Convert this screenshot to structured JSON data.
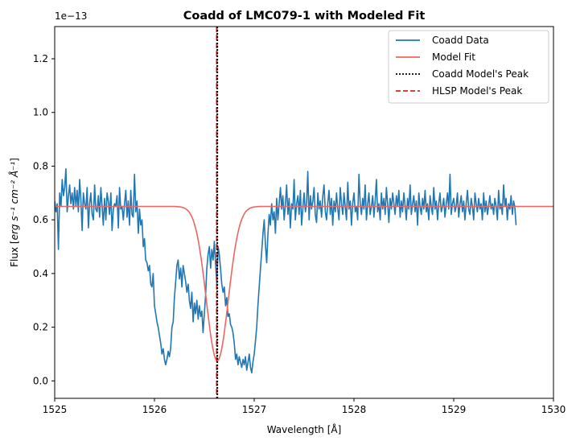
{
  "chart_data": {
    "type": "line",
    "title": "Coadd of LMC079-1 with Modeled Fit",
    "xlabel": "Wavelength [Å]",
    "ylabel_prefix": "Flux [",
    "ylabel_units": "erg s⁻¹ cm⁻² Å⁻¹",
    "ylabel_suffix": "]",
    "y_offset_text": "1e−13",
    "xlim": [
      1525,
      1530
    ],
    "ylim": [
      -0.065,
      1.32
    ],
    "x_ticks": [
      1525,
      1526,
      1527,
      1528,
      1529,
      1530
    ],
    "x_tick_labels": [
      "1525",
      "1526",
      "1527",
      "1528",
      "1529",
      "1530"
    ],
    "y_ticks": [
      0.0,
      0.2,
      0.4,
      0.6,
      0.8,
      1.0,
      1.2
    ],
    "y_tick_labels": [
      "0.0",
      "0.2",
      "0.4",
      "0.6",
      "0.8",
      "1.0",
      "1.2"
    ],
    "series": [
      {
        "name": "Coadd Data",
        "color": "#1f77b4",
        "style": "solid",
        "x_start": 1525.0,
        "x_step": 0.0125,
        "values": [
          0.67,
          0.63,
          0.66,
          0.49,
          0.7,
          0.65,
          0.75,
          0.69,
          0.72,
          0.79,
          0.63,
          0.69,
          0.73,
          0.66,
          0.7,
          0.64,
          0.72,
          0.65,
          0.71,
          0.63,
          0.75,
          0.67,
          0.56,
          0.7,
          0.66,
          0.64,
          0.72,
          0.57,
          0.66,
          0.7,
          0.62,
          0.6,
          0.73,
          0.64,
          0.63,
          0.69,
          0.61,
          0.72,
          0.65,
          0.58,
          0.68,
          0.6,
          0.7,
          0.67,
          0.62,
          0.7,
          0.56,
          0.64,
          0.66,
          0.65,
          0.69,
          0.57,
          0.72,
          0.64,
          0.65,
          0.6,
          0.66,
          0.71,
          0.61,
          0.67,
          0.58,
          0.71,
          0.62,
          0.61,
          0.77,
          0.63,
          0.67,
          0.55,
          0.64,
          0.58,
          0.6,
          0.5,
          0.53,
          0.45,
          0.44,
          0.41,
          0.43,
          0.36,
          0.35,
          0.4,
          0.28,
          0.25,
          0.22,
          0.2,
          0.17,
          0.14,
          0.1,
          0.12,
          0.08,
          0.06,
          0.08,
          0.11,
          0.09,
          0.12,
          0.2,
          0.22,
          0.31,
          0.37,
          0.43,
          0.45,
          0.38,
          0.42,
          0.35,
          0.43,
          0.4,
          0.37,
          0.33,
          0.36,
          0.3,
          0.27,
          0.33,
          0.22,
          0.29,
          0.25,
          0.3,
          0.23,
          0.28,
          0.24,
          0.26,
          0.18,
          0.25,
          0.32,
          0.42,
          0.47,
          0.5,
          0.42,
          0.49,
          0.45,
          0.52,
          0.44,
          0.36,
          0.5,
          0.47,
          0.42,
          0.36,
          0.33,
          0.35,
          0.28,
          0.31,
          0.24,
          0.25,
          0.21,
          0.2,
          0.18,
          0.14,
          0.08,
          0.1,
          0.06,
          0.09,
          0.07,
          0.05,
          0.08,
          0.06,
          0.09,
          0.04,
          0.07,
          0.1,
          0.05,
          0.03,
          0.07,
          0.1,
          0.15,
          0.2,
          0.28,
          0.35,
          0.42,
          0.48,
          0.55,
          0.6,
          0.51,
          0.44,
          0.55,
          0.62,
          0.58,
          0.66,
          0.6,
          0.63,
          0.55,
          0.68,
          0.6,
          0.66,
          0.72,
          0.64,
          0.69,
          0.6,
          0.66,
          0.73,
          0.62,
          0.68,
          0.57,
          0.66,
          0.64,
          0.75,
          0.6,
          0.66,
          0.69,
          0.62,
          0.71,
          0.58,
          0.64,
          0.7,
          0.63,
          0.66,
          0.78,
          0.6,
          0.69,
          0.64,
          0.67,
          0.72,
          0.62,
          0.59,
          0.7,
          0.64,
          0.67,
          0.61,
          0.69,
          0.73,
          0.63,
          0.6,
          0.66,
          0.71,
          0.62,
          0.68,
          0.58,
          0.67,
          0.63,
          0.7,
          0.64,
          0.6,
          0.72,
          0.66,
          0.62,
          0.7,
          0.65,
          0.6,
          0.74,
          0.64,
          0.67,
          0.58,
          0.66,
          0.7,
          0.63,
          0.65,
          0.6,
          0.77,
          0.66,
          0.62,
          0.68,
          0.64,
          0.73,
          0.6,
          0.66,
          0.7,
          0.62,
          0.65,
          0.69,
          0.61,
          0.67,
          0.75,
          0.63,
          0.66,
          0.6,
          0.7,
          0.64,
          0.68,
          0.62,
          0.72,
          0.66,
          0.59,
          0.68,
          0.64,
          0.7,
          0.66,
          0.62,
          0.69,
          0.65,
          0.71,
          0.61,
          0.67,
          0.63,
          0.7,
          0.65,
          0.6,
          0.68,
          0.64,
          0.73,
          0.62,
          0.66,
          0.69,
          0.63,
          0.67,
          0.58,
          0.7,
          0.65,
          0.62,
          0.68,
          0.64,
          0.71,
          0.63,
          0.66,
          0.6,
          0.69,
          0.65,
          0.62,
          0.72,
          0.64,
          0.67,
          0.6,
          0.66,
          0.7,
          0.63,
          0.65,
          0.68,
          0.61,
          0.66,
          0.7,
          0.64,
          0.77,
          0.62,
          0.66,
          0.68,
          0.63,
          0.65,
          0.7,
          0.61,
          0.66,
          0.69,
          0.63,
          0.67,
          0.6,
          0.66,
          0.71,
          0.64,
          0.62,
          0.68,
          0.65,
          0.6,
          0.7,
          0.66,
          0.63,
          0.68,
          0.64,
          0.66,
          0.6,
          0.7,
          0.63,
          0.67,
          0.62,
          0.65,
          0.69,
          0.64,
          0.66,
          0.62,
          0.68,
          0.65,
          0.6,
          0.71,
          0.64,
          0.66,
          0.62,
          0.73,
          0.65,
          0.68,
          0.6,
          0.66,
          0.64,
          0.69,
          0.62,
          0.67,
          0.65,
          0.58
        ]
      },
      {
        "name": "Model Fit",
        "color": "#f06461",
        "style": "solid",
        "baseline": 0.65,
        "depth": 0.575,
        "center": 1526.63,
        "sigma": 0.11
      },
      {
        "name": "Coadd Model's Peak",
        "color": "#000000",
        "style": "dotted",
        "x": 1526.63
      },
      {
        "name": "HLSP Model's Peak",
        "color": "#d62728",
        "style": "dashed",
        "x": 1526.625
      }
    ],
    "legend_position": "top-right",
    "grid": false
  }
}
